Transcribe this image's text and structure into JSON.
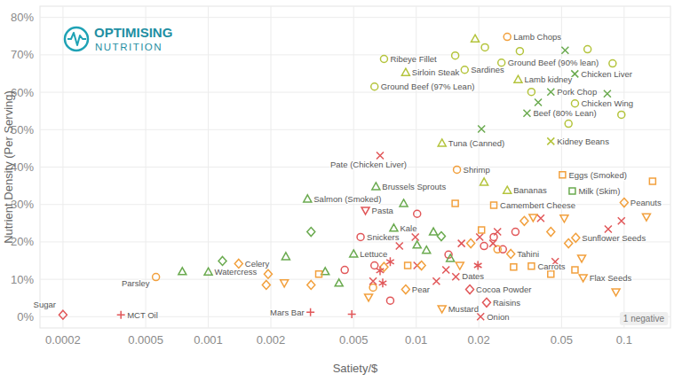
{
  "chart_data": {
    "type": "scatter",
    "logo_text": [
      "OPTIMISING",
      "NUTRITION"
    ],
    "x_label": "Satiety/$",
    "y_label": "Nutrient Density (Per Serving)",
    "annotation": "1 negative",
    "log": "x",
    "grid": true,
    "xlim": [
      0.000155,
      0.167
    ],
    "xticks": [
      0.0002,
      0.0005,
      0.001,
      0.002,
      0.005,
      0.01,
      0.02,
      0.05,
      0.1
    ],
    "ylim": [
      -3,
      83
    ],
    "yticks": [
      {
        "value": 0,
        "label": "0%"
      },
      {
        "value": 10,
        "label": "10%"
      },
      {
        "value": 20,
        "label": "20%"
      },
      {
        "value": 30,
        "label": "30%"
      },
      {
        "value": 40,
        "label": "40%"
      },
      {
        "value": 50,
        "label": "50%"
      },
      {
        "value": 60,
        "label": "60%"
      },
      {
        "value": 70,
        "label": "70%"
      },
      {
        "value": 80,
        "label": "80%"
      }
    ],
    "series": [
      {
        "marker": "circle",
        "x": [
          0.0054,
          0.0157,
          0.0063,
          0.007,
          0.0171,
          0.0274,
          0.0257,
          0.058,
          0.00056,
          0.00453,
          0.0063,
          0.0143,
          0.0212,
          0.0236,
          0.0261,
          0.03,
          0.0101,
          0.0075,
          0.0154,
          0.0214,
          0.0315,
          0.0358,
          0.0667,
          0.097,
          0.054,
          0.088,
          0.0246,
          0.0062
        ],
        "values": [
          21.3,
          39.3,
          61.5,
          68.9,
          66,
          74.8,
          67.9,
          57,
          10.6,
          12.5,
          13.7,
          16.6,
          18.9,
          21.3,
          18,
          22.7,
          27.5,
          4.3,
          69.8,
          72,
          71,
          60.1,
          71.5,
          54,
          51.6,
          67.7,
          18,
          7.8
        ],
        "labels": [
          "Snickers",
          "Shrimp",
          "Ground Beef (97% Lean)",
          "Ribeye Fillet",
          "Sardines",
          "Lamb Chops",
          "Ground Beef (90% lean)",
          "Chicken Wing",
          "Parsley",
          null,
          null,
          null,
          null,
          null,
          null,
          null,
          null,
          null,
          null,
          null,
          null,
          null,
          null,
          null,
          null,
          null,
          null,
          null
        ],
        "colors": [
          "#e15759",
          "#f2a03d",
          "#b4c43c",
          "#b4c43c",
          "#b4c43c",
          "#f2a03d",
          "#b4c43c",
          "#b4c43c",
          "#f2a03d",
          "#e15759",
          "#e15759",
          "#e15759",
          "#e15759",
          "#e15759",
          "#e15759",
          "#e15759",
          "#e15759",
          "#e15759",
          "#b4c43c",
          "#b4c43c",
          "#b4c43c",
          "#b4c43c",
          "#b4c43c",
          "#b4c43c",
          "#b4c43c",
          "#b4c43c",
          "#f2a03d",
          "#f2a03d"
        ]
      },
      {
        "marker": "cross",
        "x": [
          0.0067,
          0.0444,
          0.0579,
          0.0341,
          0.0444,
          0.0155,
          0.0204,
          0.0062,
          0.0083,
          0.0099,
          0.0101,
          0.0125,
          0.0139,
          0.0165,
          0.0202,
          0.0234,
          0.0246,
          0.0397,
          0.0466,
          0.0838,
          0.097,
          0.0206,
          0.052,
          0.083,
          0.0386
        ],
        "values": [
          43.1,
          60.1,
          64.9,
          54.4,
          46.9,
          10.7,
          0,
          9.5,
          18.9,
          21.3,
          13.7,
          9.5,
          12.5,
          19.6,
          21.3,
          19.6,
          22.7,
          26.3,
          14.7,
          23.4,
          25.6,
          50.2,
          71.2,
          59.6,
          57.3
        ],
        "labels": [
          "Pate (Chicken Liver)",
          "Pork Chop",
          "Chicken Liver",
          "Beef (80% Lean)",
          "Kidney Beans",
          "Dates",
          "Onion",
          null,
          null,
          null,
          null,
          null,
          null,
          null,
          null,
          null,
          null,
          null,
          null,
          null,
          null,
          null,
          null,
          null,
          null
        ],
        "colors": [
          "#e15759",
          "#6aaa4f",
          "#6aaa4f",
          "#6aaa4f",
          "#b4c43c",
          "#e15759",
          "#e15759",
          "#e15759",
          "#e15759",
          "#e15759",
          "#e15759",
          "#e15759",
          "#e15759",
          "#e15759",
          "#e15759",
          "#e15759",
          "#e15759",
          "#e15759",
          "#e15759",
          "#e15759",
          "#e15759",
          "#6aaa4f",
          "#6aaa4f",
          "#6aaa4f",
          "#6aaa4f"
        ]
      },
      {
        "marker": "triangle",
        "x": [
          0.001,
          0.005,
          0.0078,
          0.003,
          0.0064,
          0.0133,
          0.0089,
          0.0309,
          0.0274,
          0.00075,
          0.00236,
          0.00365,
          0.00425,
          0.0101,
          0.0112,
          0.0121,
          0.0087,
          0.0146,
          0.0192,
          0.0212
        ],
        "values": [
          12,
          16.8,
          23.7,
          31.5,
          34.8,
          46.4,
          65.3,
          63.4,
          33.8,
          12.1,
          16.1,
          12.1,
          9,
          19.2,
          17.8,
          22.7,
          30.3,
          15.6,
          74.3,
          36
        ],
        "labels": [
          "Watercress",
          "Lettuce",
          "Kale",
          "Salmon (Smoked)",
          "Brussels Sprouts",
          "Tuna (Canned)",
          "Sirloin Steak",
          "Lamb kidney",
          "Bananas",
          null,
          null,
          null,
          null,
          null,
          null,
          null,
          null,
          null,
          null,
          null
        ],
        "colors": [
          "#6aaa4f",
          "#6aaa4f",
          "#6aaa4f",
          "#6aaa4f",
          "#6aaa4f",
          "#b4c43c",
          "#b4c43c",
          "#b4c43c",
          "#b4c43c",
          "#6aaa4f",
          "#6aaa4f",
          "#6aaa4f",
          "#6aaa4f",
          "#6aaa4f",
          "#6aaa4f",
          "#6aaa4f",
          "#6aaa4f",
          "#6aaa4f",
          "#b4c43c",
          "#b4c43c"
        ]
      },
      {
        "marker": "triangle-down",
        "x": [
          0.0057,
          0.0635,
          0.0133,
          0.00232,
          0.0059,
          0.0162,
          0.0365,
          0.0515,
          0.0625,
          0.0913,
          0.128
        ],
        "values": [
          28.4,
          10.4,
          2.1,
          9,
          5.2,
          13.7,
          26.5,
          26.3,
          15.6,
          6.6,
          26.7
        ],
        "labels": [
          "Pasta",
          "Flax Seeds",
          "Mustard",
          null,
          null,
          null,
          null,
          null,
          null,
          null,
          null
        ],
        "colors": [
          "#e15759",
          "#f2a03d",
          "#f2a03d",
          "#f2a03d",
          "#f2a03d",
          "#f2a03d",
          "#f2a03d",
          "#f2a03d",
          "#f2a03d",
          "#f2a03d",
          "#f2a03d"
        ]
      },
      {
        "marker": "square",
        "x": [
          0.0505,
          0.0563,
          0.0236,
          0.0358,
          0.0034,
          0.0091,
          0.0154,
          0.0206,
          0.0294,
          0.0444,
          0.058,
          0.137
        ],
        "values": [
          37.9,
          33.6,
          29.8,
          13.5,
          11.4,
          13.7,
          30.3,
          23.2,
          13.3,
          11.4,
          12.5,
          36.2
        ],
        "labels": [
          "Eggs (Smoked)",
          "Milk (Skim)",
          "Camembert Cheese",
          "Carrots",
          null,
          null,
          null,
          null,
          null,
          null,
          null,
          null
        ],
        "colors": [
          "#f2a03d",
          "#6aaa4f",
          "#f2a03d",
          "#f2a03d",
          "#f2a03d",
          "#f2a03d",
          "#f2a03d",
          "#f2a03d",
          "#f2a03d",
          "#f2a03d",
          "#f2a03d",
          "#f2a03d"
        ]
      },
      {
        "marker": "diamond",
        "x": [
          0.0002,
          0.0585,
          0.0285,
          0.0181,
          0.0089,
          0.0218,
          0.1,
          0.0014,
          0.00194,
          0.0019,
          0.00312,
          0.007,
          0.0106,
          0.0183,
          0.0331,
          0.0444,
          0.054,
          0.00117,
          0.00312,
          0.0132
        ],
        "values": [
          0.5,
          21.1,
          16.8,
          7.3,
          7.3,
          3.8,
          30.5,
          14.2,
          11.4,
          8.5,
          8.5,
          13.3,
          13.7,
          19.6,
          25.6,
          22.7,
          19.6,
          14.9,
          22.7,
          21.5
        ],
        "labels": [
          "Sugar",
          "Sunflower Seeds",
          "Tahini",
          "Cocoa Powder",
          "Pear",
          "Raisins",
          "Peanuts",
          "Celery",
          null,
          null,
          null,
          null,
          null,
          null,
          null,
          null,
          null,
          null,
          null,
          null
        ],
        "colors": [
          "#e15759",
          "#f2a03d",
          "#f2a03d",
          "#e15759",
          "#f2a03d",
          "#e15759",
          "#f2a03d",
          "#f2a03d",
          "#f2a03d",
          "#f2a03d",
          "#f2a03d",
          "#f2a03d",
          "#f2a03d",
          "#f2a03d",
          "#f2a03d",
          "#f2a03d",
          "#f2a03d",
          "#6aaa4f",
          "#6aaa4f",
          "#6aaa4f"
        ]
      },
      {
        "marker": "plus",
        "x": [
          0.00038,
          0.0031,
          0.0049
        ],
        "values": [
          0.5,
          1.2,
          0.7
        ],
        "labels": [
          "MCT Oil",
          "Mars Bar",
          null
        ],
        "colors": [
          "#e15759",
          "#e15759",
          "#e15759"
        ]
      },
      {
        "marker": "star",
        "x": [
          0.0067,
          0.0075,
          0.0198,
          0.0069
        ],
        "values": [
          12.3,
          14.7,
          13.7,
          9
        ],
        "colors": [
          "#e15759",
          "#e15759",
          "#e15759",
          "#e15759"
        ]
      }
    ]
  }
}
